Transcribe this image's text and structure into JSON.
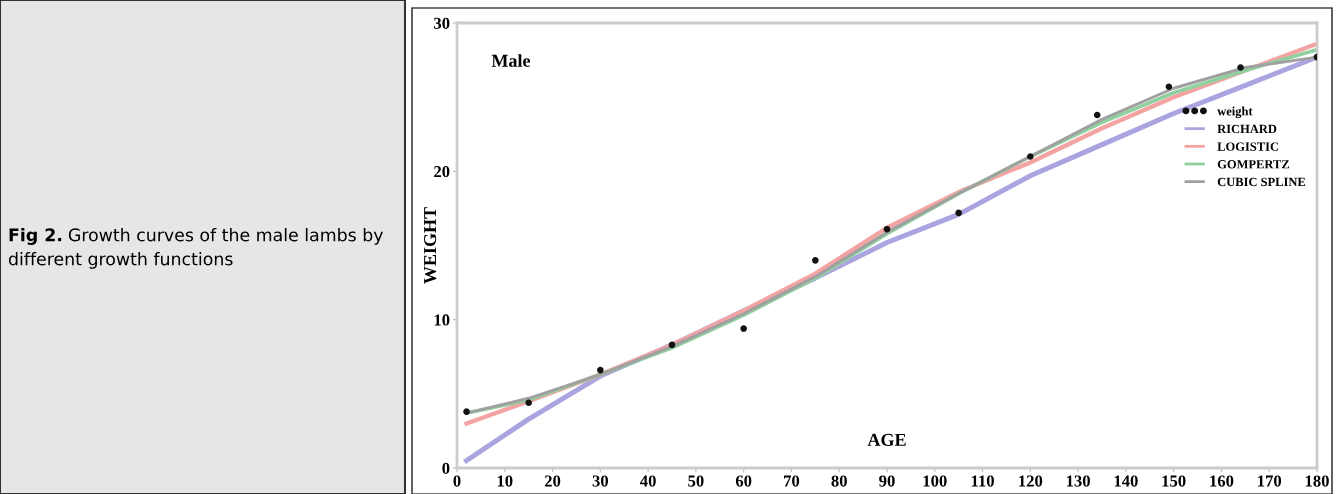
{
  "chart_data": {
    "type": "line",
    "title": "Fig 2.",
    "subtitle": "Growth curves of the male lambs by different growth functions",
    "xlabel": "AGE",
    "ylabel": "WEIGHT",
    "annotations": [
      "Male"
    ],
    "xlim": [
      0,
      180
    ],
    "xticks": [
      0,
      10,
      20,
      30,
      40,
      50,
      60,
      70,
      80,
      90,
      100,
      110,
      120,
      130,
      140,
      150,
      160,
      170,
      180
    ],
    "ylim": [
      0,
      30
    ],
    "yticks": [
      0,
      10,
      20,
      30
    ],
    "grid": false,
    "legend": "right",
    "series": [
      {
        "name": "weight",
        "type": "scatter",
        "marker": "circle",
        "color": "#111111",
        "x": [
          2,
          15,
          30,
          45,
          60,
          75,
          90,
          105,
          120,
          134,
          149,
          164,
          180
        ],
        "values": [
          3.8,
          4.4,
          6.6,
          8.3,
          9.4,
          14.0,
          16.1,
          17.2,
          21.0,
          23.8,
          25.7,
          27.0,
          27.7
        ]
      },
      {
        "name": "RICHARD",
        "color": "#aaa5e0",
        "x": [
          2,
          15,
          30,
          45,
          60,
          75,
          90,
          105,
          120,
          135,
          150,
          165,
          180
        ],
        "values": [
          0.5,
          3.3,
          6.2,
          8.3,
          10.6,
          12.8,
          15.2,
          17.1,
          19.7,
          21.8,
          23.9,
          25.8,
          27.7
        ]
      },
      {
        "name": "LOGISTIC",
        "color": "#f4a3a3",
        "x": [
          2,
          15,
          30,
          45,
          60,
          75,
          90,
          105,
          120,
          135,
          150,
          165,
          180
        ],
        "values": [
          3.0,
          4.5,
          6.3,
          8.3,
          10.6,
          13.1,
          16.2,
          18.6,
          20.6,
          22.9,
          25.0,
          26.8,
          28.6
        ]
      },
      {
        "name": "GOMPERTZ",
        "color": "#8fd19e",
        "x": [
          2,
          15,
          30,
          45,
          60,
          75,
          90,
          105,
          120,
          135,
          150,
          165,
          180
        ],
        "values": [
          3.7,
          4.6,
          6.3,
          8.1,
          10.3,
          12.8,
          15.8,
          18.5,
          21.0,
          23.3,
          25.3,
          26.8,
          28.2
        ]
      },
      {
        "name": "CUBIC SPLINE",
        "color": "#a0a0a0",
        "x": [
          2,
          15,
          30,
          45,
          60,
          75,
          90,
          105,
          120,
          135,
          150,
          165,
          180
        ],
        "values": [
          3.7,
          4.7,
          6.3,
          8.2,
          10.4,
          12.9,
          15.9,
          18.5,
          21.0,
          23.5,
          25.6,
          27.0,
          27.7
        ]
      }
    ]
  }
}
